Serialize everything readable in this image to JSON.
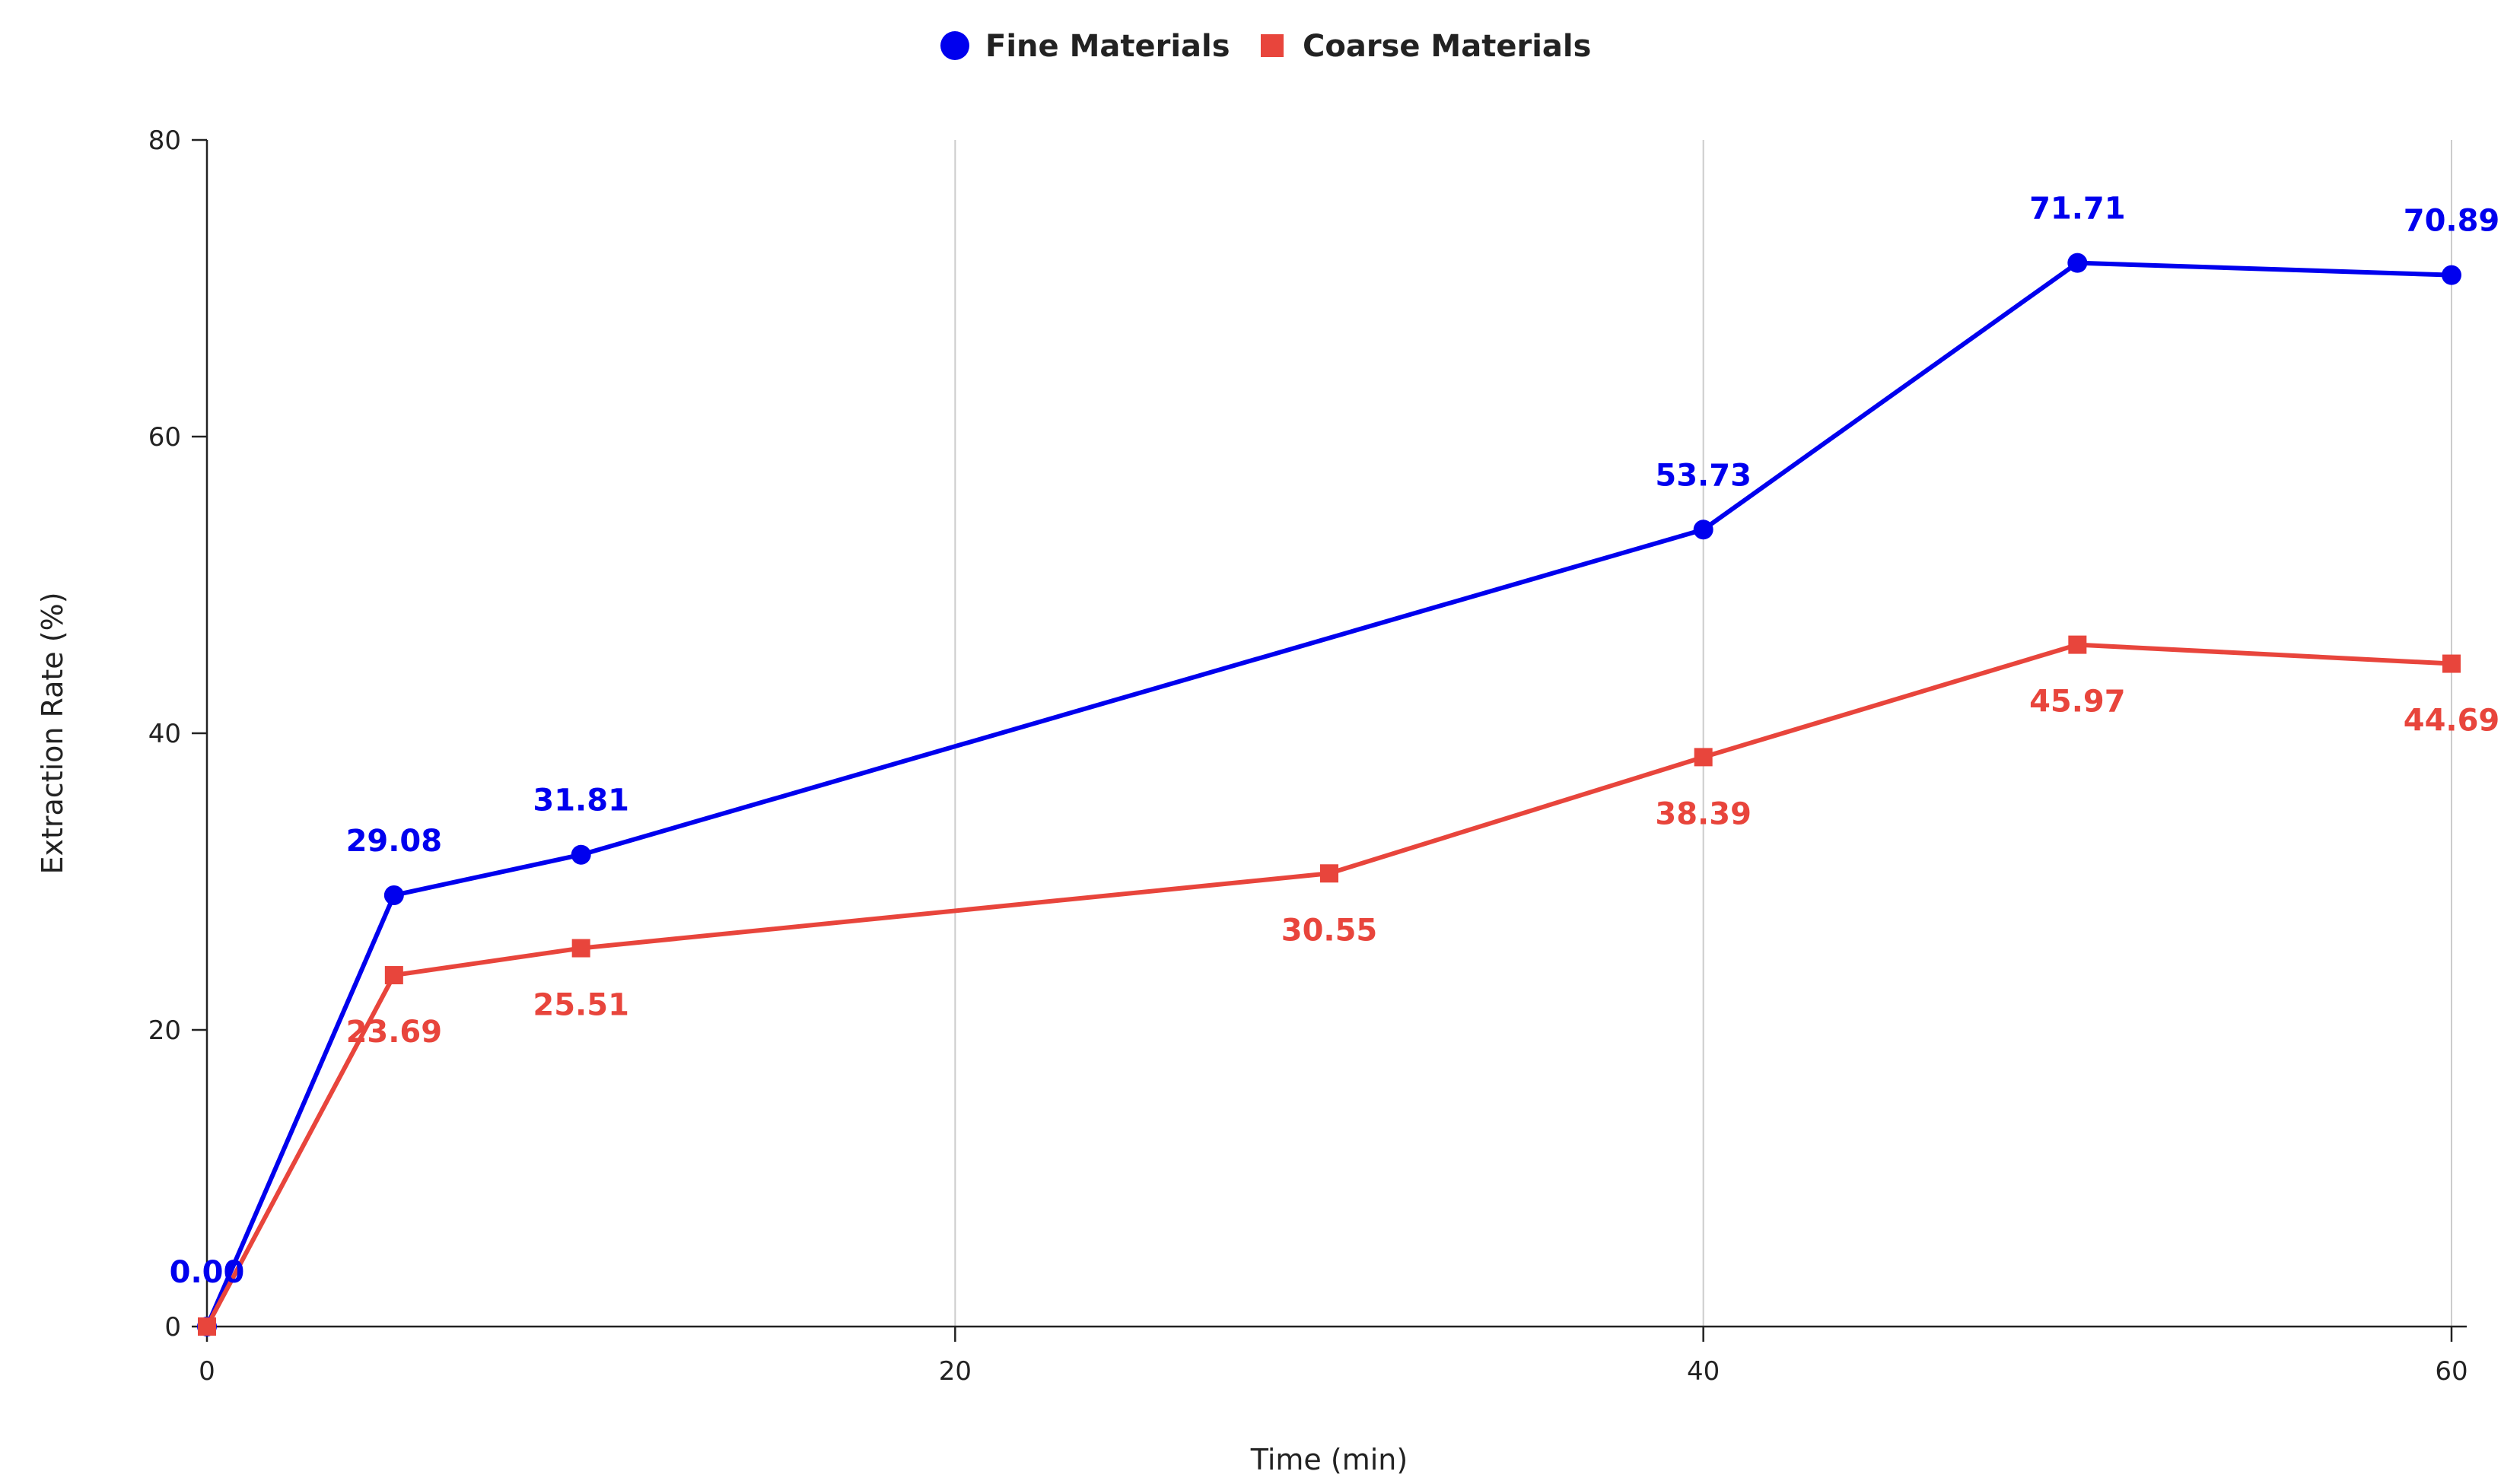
{
  "chart_data": {
    "type": "line",
    "title": "",
    "xlabel": "Time (min)",
    "ylabel": "Extraction Rate (%)",
    "xlim": [
      0,
      60
    ],
    "ylim": [
      0,
      80
    ],
    "x_ticks": [
      0,
      20,
      40,
      60
    ],
    "y_ticks": [
      0,
      20,
      40,
      60,
      80
    ],
    "x_tick_labels": [
      "0",
      "20",
      "40",
      "60"
    ],
    "y_tick_labels": [
      "0",
      "20",
      "40",
      "60",
      "80"
    ],
    "grid": "vertical",
    "legend": "top-center",
    "series": [
      {
        "name": "Fine Materials",
        "color": "#0000ee",
        "marker": "circle",
        "label_position": "above",
        "x": [
          0,
          5,
          10,
          40,
          50,
          60
        ],
        "y": [
          0.0,
          29.08,
          31.81,
          53.73,
          71.71,
          70.89
        ],
        "labels": [
          "0.00",
          "29.08",
          "31.81",
          "53.73",
          "71.71",
          "70.89"
        ]
      },
      {
        "name": "Coarse Materials",
        "color": "#e8453c",
        "marker": "square",
        "label_position": "below",
        "x": [
          0,
          5,
          10,
          30,
          40,
          50,
          60
        ],
        "y": [
          0.0,
          23.69,
          25.51,
          30.55,
          38.39,
          45.97,
          44.69
        ],
        "labels": [
          "",
          "23.69",
          "25.51",
          "30.55",
          "38.39",
          "45.97",
          "44.69"
        ]
      }
    ]
  }
}
